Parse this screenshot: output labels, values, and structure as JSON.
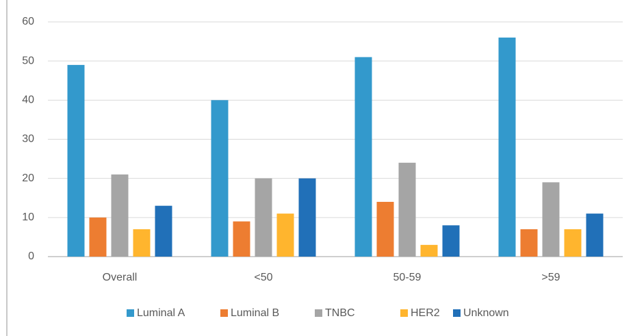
{
  "chart_data": {
    "type": "bar",
    "categories": [
      "Overall",
      "<50",
      "50-59",
      ">59"
    ],
    "series": [
      {
        "name": "Luminal A",
        "color": "#3399cc",
        "values": [
          49,
          40,
          51,
          56
        ]
      },
      {
        "name": "Luminal B",
        "color": "#ed7d31",
        "values": [
          10,
          9,
          14,
          7
        ]
      },
      {
        "name": "TNBC",
        "color": "#a5a5a5",
        "values": [
          21,
          20,
          24,
          19
        ]
      },
      {
        "name": "HER2",
        "color": "#ffb52e",
        "values": [
          7,
          11,
          3,
          7
        ]
      },
      {
        "name": "Unknown",
        "color": "#2170b8",
        "values": [
          13,
          20,
          8,
          11
        ]
      }
    ],
    "ylim": [
      0,
      60
    ],
    "yticks": [
      0,
      10,
      20,
      30,
      40,
      50,
      60
    ],
    "grid": true,
    "legend": "bottom"
  }
}
